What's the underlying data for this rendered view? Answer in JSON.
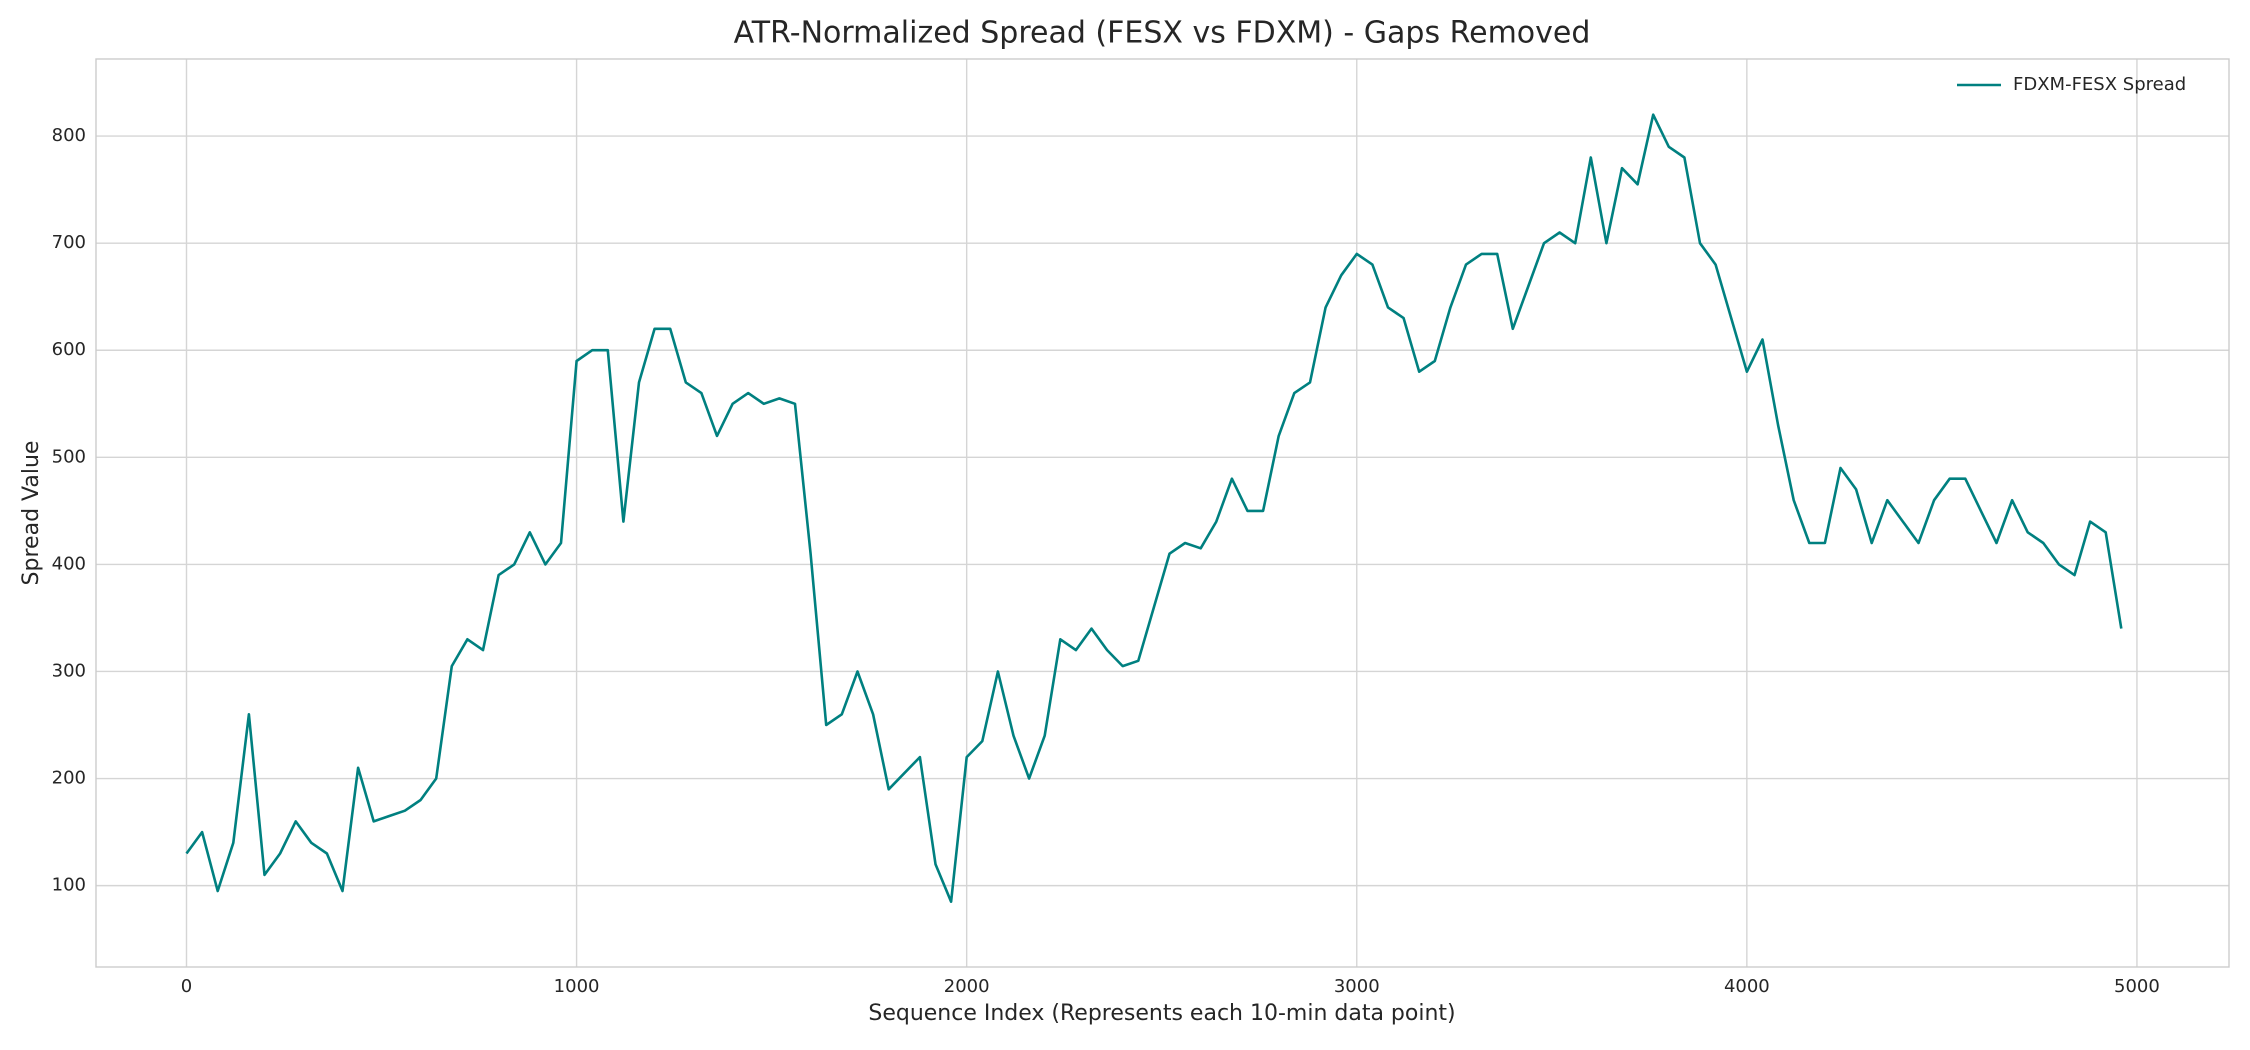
{
  "chart_data": {
    "type": "line",
    "title": "ATR-Normalized Spread (FESX vs FDXM) - Gaps Removed",
    "x_label": "Sequence Index (Represents each 10-min data point)",
    "y_label": "Spread Value",
    "x": [
      0,
      40,
      80,
      120,
      160,
      200,
      240,
      280,
      320,
      360,
      400,
      440,
      480,
      520,
      560,
      600,
      640,
      680,
      720,
      760,
      800,
      840,
      880,
      920,
      960,
      1000,
      1040,
      1080,
      1120,
      1160,
      1200,
      1240,
      1280,
      1320,
      1360,
      1400,
      1440,
      1480,
      1520,
      1560,
      1600,
      1640,
      1680,
      1720,
      1760,
      1800,
      1840,
      1880,
      1920,
      1960,
      2000,
      2040,
      2080,
      2120,
      2160,
      2200,
      2240,
      2280,
      2320,
      2360,
      2400,
      2440,
      2480,
      2520,
      2560,
      2600,
      2640,
      2680,
      2720,
      2760,
      2800,
      2840,
      2880,
      2920,
      2960,
      3000,
      3040,
      3080,
      3120,
      3160,
      3200,
      3240,
      3280,
      3320,
      3360,
      3400,
      3440,
      3480,
      3520,
      3560,
      3600,
      3640,
      3680,
      3720,
      3760,
      3800,
      3840,
      3880,
      3920,
      3960,
      4000,
      4040,
      4080,
      4120,
      4160,
      4200,
      4240,
      4280,
      4320,
      4360,
      4400,
      4440,
      4480,
      4520,
      4560,
      4600,
      4640,
      4680,
      4720,
      4760,
      4800,
      4840,
      4880,
      4920,
      4960
    ],
    "series": [
      {
        "name": "FDXM-FESX Spread",
        "color": "#008080",
        "values": [
          130,
          150,
          95,
          140,
          260,
          110,
          130,
          160,
          140,
          130,
          95,
          210,
          160,
          165,
          170,
          180,
          200,
          305,
          330,
          320,
          390,
          400,
          430,
          400,
          420,
          590,
          600,
          600,
          440,
          570,
          620,
          620,
          570,
          560,
          520,
          550,
          560,
          550,
          555,
          550,
          410,
          250,
          260,
          300,
          260,
          190,
          205,
          220,
          120,
          85,
          220,
          235,
          300,
          240,
          200,
          240,
          330,
          320,
          340,
          320,
          305,
          310,
          360,
          410,
          420,
          415,
          440,
          480,
          450,
          450,
          520,
          560,
          570,
          640,
          670,
          690,
          680,
          640,
          630,
          580,
          590,
          640,
          680,
          690,
          690,
          620,
          660,
          700,
          710,
          700,
          780,
          700,
          770,
          755,
          820,
          790,
          780,
          700,
          680,
          630,
          580,
          610,
          530,
          460,
          420,
          420,
          490,
          470,
          420,
          460,
          440,
          420,
          460,
          480,
          480,
          450,
          420,
          460,
          430,
          420,
          400,
          390,
          440,
          430,
          340
        ]
      }
    ],
    "xlim": [
      -232,
      5236
    ],
    "ylim": [
      24,
      872
    ],
    "xticks": [
      0,
      1000,
      2000,
      3000,
      4000,
      5000
    ],
    "yticks": [
      100,
      200,
      300,
      400,
      500,
      600,
      700,
      800
    ],
    "grid": true,
    "legend": "upper right"
  }
}
